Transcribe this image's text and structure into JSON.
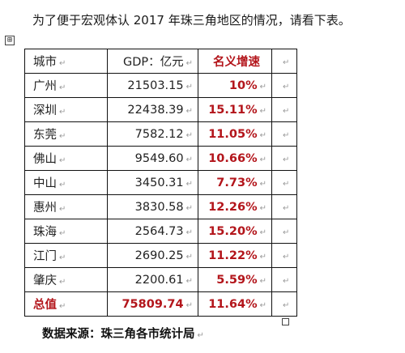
{
  "intro": "为了便于宏观体认 2017 年珠三角地区的情况，请看下表。",
  "anchor_glyph": "⊞",
  "para_mark": "↵",
  "headers": {
    "city": "城市",
    "gdp": "GDP：亿元",
    "rate": "名义增速"
  },
  "rows": [
    {
      "city": "广州",
      "gdp": "21503.15",
      "rate": "10%"
    },
    {
      "city": "深圳",
      "gdp": "22438.39",
      "rate": "15.11%"
    },
    {
      "city": "东莞",
      "gdp": "7582.12",
      "rate": "11.05%"
    },
    {
      "city": "佛山",
      "gdp": "9549.60",
      "rate": "10.66%"
    },
    {
      "city": "中山",
      "gdp": "3450.31",
      "rate": "7.73%"
    },
    {
      "city": "惠州",
      "gdp": "3830.58",
      "rate": "12.26%"
    },
    {
      "city": "珠海",
      "gdp": "2564.73",
      "rate": "15.20%"
    },
    {
      "city": "江门",
      "gdp": "2690.25",
      "rate": "11.22%"
    },
    {
      "city": "肇庆",
      "gdp": "2200.61",
      "rate": "5.59%"
    }
  ],
  "total": {
    "city": "总值",
    "gdp": "75809.74",
    "rate": "11.64%"
  },
  "source": "数据来源：珠三角各市统计局",
  "colors": {
    "emphasis_red": "#b3151b",
    "border": "#111111",
    "marks": "#9a9a9a"
  }
}
